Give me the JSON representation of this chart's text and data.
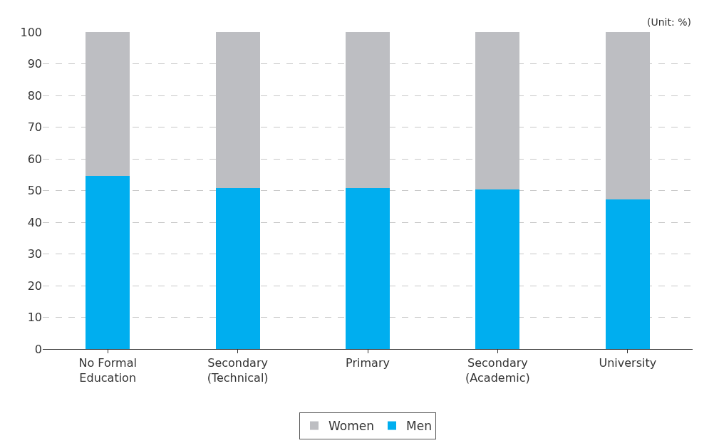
{
  "chart_data": {
    "type": "bar",
    "stacked": true,
    "categories": [
      "No Formal\nEducation",
      "Secondary\n(Technical)",
      "Primary",
      "Secondary\n(Academic)",
      "University"
    ],
    "series": [
      {
        "name": "Men",
        "color": "#00aeef",
        "values": [
          54.5,
          50.9,
          50.7,
          50.4,
          47.2
        ]
      },
      {
        "name": "Women",
        "color": "#bdbec2",
        "values": [
          45.5,
          49.1,
          49.3,
          49.6,
          52.8
        ]
      }
    ],
    "ylim": [
      0,
      100
    ],
    "yticks": [
      0,
      10,
      20,
      30,
      40,
      50,
      60,
      70,
      80,
      90,
      100
    ],
    "grid": "y",
    "legend": "bottom",
    "annotations": [
      "(Unit: %)"
    ]
  }
}
